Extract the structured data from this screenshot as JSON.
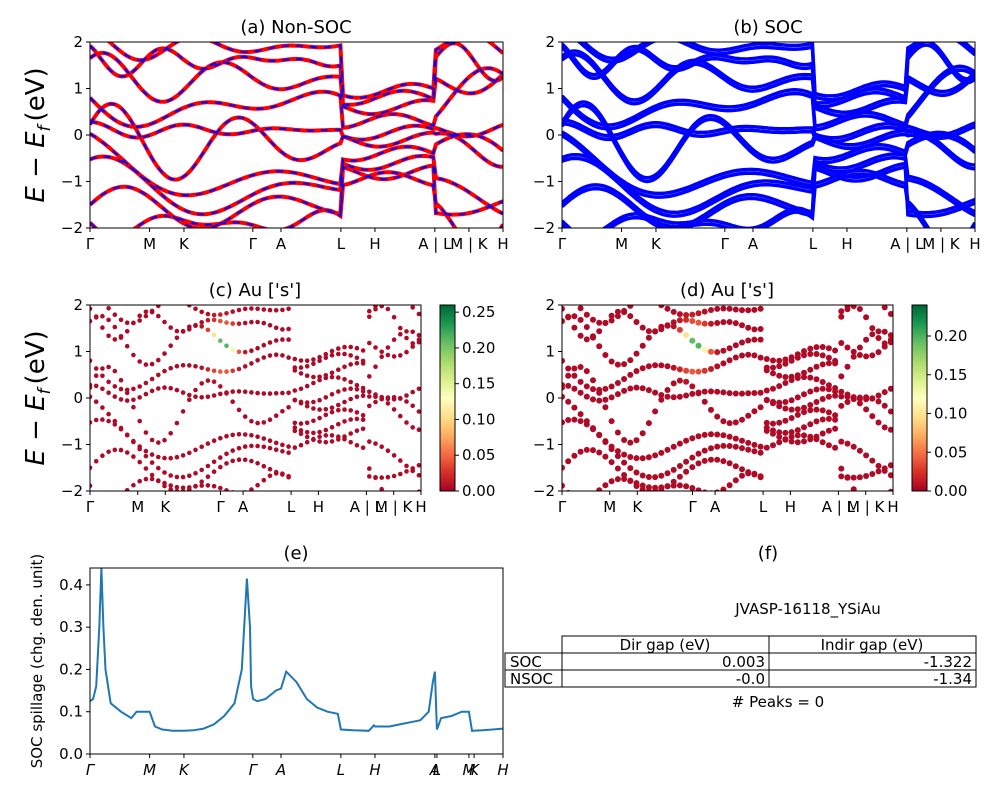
{
  "panels": {
    "a_title": "(a) Non-SOC",
    "b_title": "(b) SOC",
    "c_title": "(c)  Au ['s']",
    "d_title": "(d) Au ['s']",
    "e_title": "(e)",
    "f_title": "(f)"
  },
  "band_ylabel": "E − E",
  "band_ylabel_sub": "f",
  "band_ylabel_unit": "(eV)",
  "spillage_ylabel": "SOC spillage (chg. den. unit)",
  "kpath_labels": [
    "Γ",
    "M",
    "K",
    "Γ",
    "A",
    "L",
    "H",
    "A | L",
    "M | K",
    "H"
  ],
  "yticks": [
    "2",
    "1",
    "0",
    "−1",
    "−2"
  ],
  "colorbar_c_ticks": [
    "0.25",
    "0.20",
    "0.15",
    "0.10",
    "0.05",
    "0.00"
  ],
  "colorbar_d_ticks": [
    "0.20",
    "0.15",
    "0.10",
    "0.05",
    "0.00"
  ],
  "spill_yticks": [
    "0.4",
    "0.3",
    "0.2",
    "0.1",
    "0.0"
  ],
  "spill_xlabels": [
    "Γ",
    "M",
    "K",
    "Γ",
    "A",
    "L",
    "H",
    "A",
    "L",
    "M",
    "K",
    "H"
  ],
  "info": {
    "material": "JVASP-16118_YSiAu",
    "col_dir": "Dir gap (eV)",
    "col_indir": "Indir gap (eV)",
    "rows": [
      {
        "label": "SOC",
        "dir": "0.003",
        "indir": "-1.322"
      },
      {
        "label": "NSOC",
        "dir": "-0.0",
        "indir": "-1.34"
      }
    ],
    "peaks": "# Peaks = 0"
  },
  "colors": {
    "nonsoc_line": "#ff0000",
    "nonsoc_dash": "#0000ff",
    "soc_line": "#0000ff",
    "spillage_line": "#1f77b4"
  },
  "chart_data": [
    {
      "type": "line",
      "title": "(a) Non-SOC",
      "ylim": [
        -2,
        2
      ],
      "x_ticks": [
        "Γ",
        "M",
        "K",
        "Γ",
        "A",
        "L",
        "H",
        "A | L",
        "M | K",
        "H"
      ],
      "x_tick_positions": [
        0,
        0.577,
        0.91,
        1.577,
        1.85,
        2.43,
        2.76,
        3.34,
        3.67,
        4.0
      ]
    },
    {
      "type": "line",
      "title": "(b) SOC",
      "ylim": [
        -2,
        2
      ],
      "x_ticks": [
        "Γ",
        "M",
        "K",
        "Γ",
        "A",
        "L",
        "H",
        "A | L",
        "M | K",
        "H"
      ],
      "x_tick_positions": [
        0,
        0.577,
        0.91,
        1.577,
        1.85,
        2.43,
        2.76,
        3.34,
        3.67,
        4.0
      ]
    },
    {
      "type": "scatter",
      "title": "(c)  Au ['s']",
      "ylim": [
        -2,
        2
      ],
      "colorbar_range": [
        0.0,
        0.26
      ]
    },
    {
      "type": "scatter",
      "title": "(d) Au ['s']",
      "ylim": [
        -2,
        2
      ],
      "colorbar_range": [
        0.0,
        0.24
      ]
    },
    {
      "type": "line",
      "title": "(e)",
      "ylabel": "SOC spillage (chg. den. unit)",
      "ylim": [
        0,
        0.44
      ],
      "x": [
        0,
        0.03,
        0.06,
        0.09,
        0.11,
        0.13,
        0.15,
        0.2,
        0.3,
        0.4,
        0.45,
        0.52,
        0.577,
        0.63,
        0.7,
        0.8,
        0.91,
        1.0,
        1.1,
        1.2,
        1.3,
        1.4,
        1.47,
        1.52,
        1.55,
        1.56,
        1.58,
        1.62,
        1.7,
        1.8,
        1.85,
        1.9,
        2.0,
        2.1,
        2.2,
        2.3,
        2.4,
        2.43,
        2.55,
        2.7,
        2.75,
        2.76,
        2.9,
        3.0,
        3.1,
        3.2,
        3.28,
        3.32,
        3.34,
        3.36,
        3.4,
        3.5,
        3.6,
        3.67,
        3.7,
        3.8,
        3.9,
        4.0
      ],
      "values": [
        0.125,
        0.13,
        0.16,
        0.3,
        0.44,
        0.3,
        0.2,
        0.12,
        0.1,
        0.085,
        0.1,
        0.1,
        0.1,
        0.065,
        0.058,
        0.055,
        0.055,
        0.056,
        0.06,
        0.07,
        0.09,
        0.12,
        0.2,
        0.415,
        0.3,
        0.16,
        0.13,
        0.125,
        0.13,
        0.15,
        0.155,
        0.195,
        0.17,
        0.13,
        0.11,
        0.1,
        0.095,
        0.058,
        0.056,
        0.055,
        0.068,
        0.065,
        0.065,
        0.07,
        0.075,
        0.08,
        0.1,
        0.17,
        0.195,
        0.058,
        0.085,
        0.09,
        0.1,
        0.1,
        0.055,
        0.056,
        0.058,
        0.06
      ]
    }
  ]
}
